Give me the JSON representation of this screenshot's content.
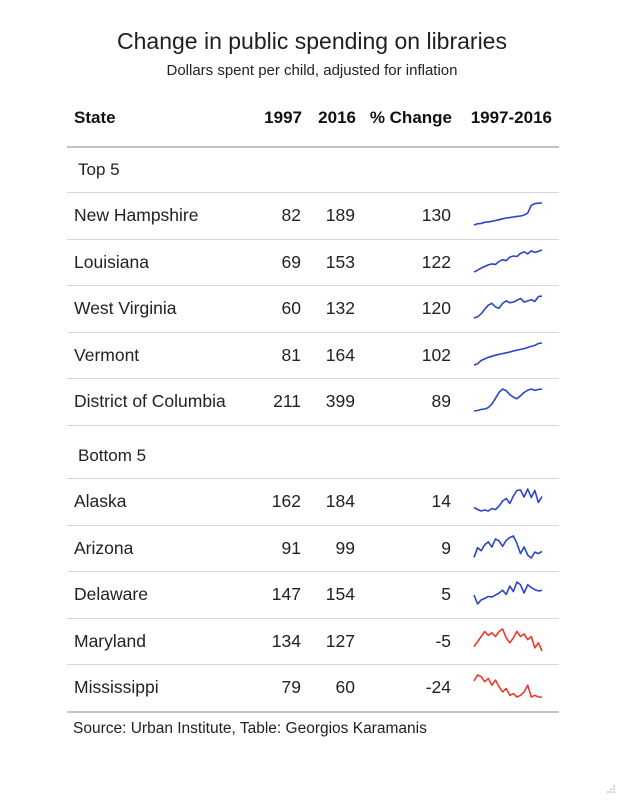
{
  "chart_data": {
    "type": "table",
    "title": "Change in public spending on libraries",
    "subtitle": "Dollars spent per child, adjusted for inflation",
    "source": "Source: Urban Institute, Table: Georgios Karamanis",
    "columns": [
      "State",
      "1997",
      "2016",
      "% Change",
      "1997-2016"
    ],
    "groups": [
      {
        "label": "Top 5",
        "rows": [
          {
            "state": "New Hampshire",
            "v1997": 82,
            "v2016": 189,
            "change": 130,
            "color": "#2a45c8",
            "spark": [
              82,
              88,
              90,
              95,
              97,
              100,
              104,
              108,
              112,
              116,
              118,
              121,
              124,
              126,
              130,
              140,
              178,
              186,
              188,
              189
            ]
          },
          {
            "state": "Louisiana",
            "v1997": 69,
            "v2016": 153,
            "change": 122,
            "color": "#2a45c8",
            "spark": [
              69,
              76,
              84,
              90,
              96,
              100,
              98,
              110,
              116,
              112,
              126,
              130,
              128,
              140,
              146,
              138,
              150,
              144,
              148,
              153
            ]
          },
          {
            "state": "West Virginia",
            "v1997": 60,
            "v2016": 132,
            "change": 120,
            "color": "#2a45c8",
            "spark": [
              60,
              64,
              74,
              88,
              102,
              108,
              96,
              92,
              108,
              116,
              110,
              112,
              118,
              124,
              112,
              116,
              120,
              114,
              130,
              132
            ]
          },
          {
            "state": "Vermont",
            "v1997": 81,
            "v2016": 164,
            "change": 102,
            "color": "#2a45c8",
            "spark": [
              81,
              86,
              98,
              104,
              110,
              114,
              118,
              121,
              124,
              127,
              130,
              134,
              137,
              140,
              143,
              147,
              151,
              155,
              162,
              164
            ]
          },
          {
            "state": "District of Columbia",
            "v1997": 211,
            "v2016": 399,
            "change": 89,
            "color": "#2a45c8",
            "spark": [
              211,
              215,
              225,
              228,
              240,
              270,
              320,
              372,
              400,
              385,
              352,
              330,
              316,
              342,
              370,
              390,
              400,
              388,
              396,
              399
            ]
          }
        ]
      },
      {
        "label": "Bottom 5",
        "rows": [
          {
            "state": "Alaska",
            "v1997": 162,
            "v2016": 184,
            "change": 14,
            "color": "#2a45c8",
            "spark": [
              162,
              158,
              155,
              157,
              155,
              160,
              158,
              165,
              175,
              180,
              170,
              185,
              196,
              197,
              183,
              199,
              182,
              196,
              172,
              184
            ]
          },
          {
            "state": "Arizona",
            "v1997": 91,
            "v2016": 99,
            "change": 9,
            "color": "#2a45c8",
            "spark": [
              91,
              104,
              100,
              108,
              112,
              105,
              116,
              113,
              106,
              114,
              118,
              120,
              110,
              96,
              105,
              94,
              90,
              98,
              96,
              99
            ]
          },
          {
            "state": "Delaware",
            "v1997": 147,
            "v2016": 154,
            "change": 5,
            "color": "#2a45c8",
            "spark": [
              147,
              134,
              140,
              142,
              145,
              144,
              147,
              150,
              154,
              148,
              160,
              152,
              166,
              162,
              150,
              162,
              158,
              155,
              153,
              154
            ]
          },
          {
            "state": "Maryland",
            "v1997": 134,
            "v2016": 127,
            "change": -5,
            "color": "#e53b2c",
            "spark": [
              134,
              142,
              150,
              158,
              152,
              156,
              150,
              158,
              162,
              148,
              140,
              148,
              158,
              150,
              154,
              145,
              150,
              132,
              140,
              127
            ]
          },
          {
            "state": "Mississippi",
            "v1997": 79,
            "v2016": 60,
            "change": -24,
            "color": "#e53b2c",
            "spark": [
              79,
              86,
              84,
              78,
              82,
              74,
              80,
              72,
              66,
              70,
              62,
              64,
              60,
              62,
              66,
              74,
              60,
              62,
              60,
              60
            ]
          }
        ]
      }
    ]
  }
}
